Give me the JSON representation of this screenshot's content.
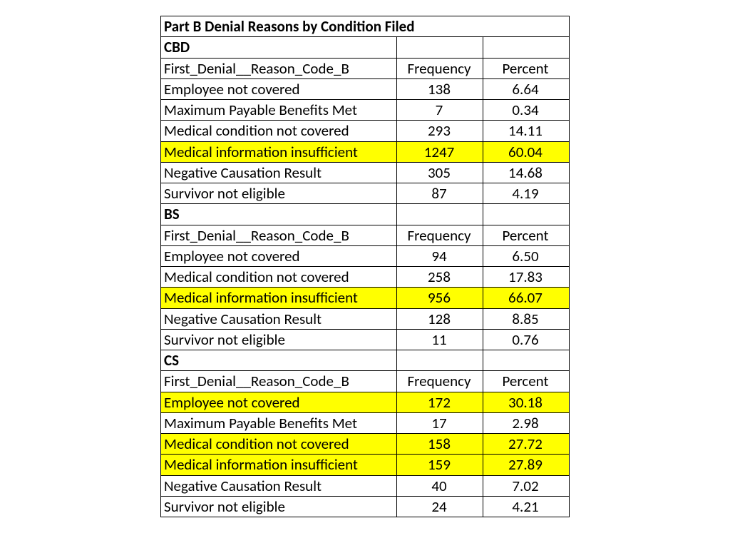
{
  "title": "Part B Denial Reasons by Condition Filed",
  "columns": {
    "reason": "First_Denial__Reason_Code_B",
    "freq": "Frequency",
    "pct": "Percent"
  },
  "highlight_color": "#ffff00",
  "border_color": "#000000",
  "background_color": "#ffffff",
  "font_size_pt": 16,
  "sections": [
    {
      "name": "CBD",
      "rows": [
        {
          "reason": "Employee not covered",
          "freq": "138",
          "pct": "6.64",
          "hl": false
        },
        {
          "reason": "Maximum Payable Benefits Met",
          "freq": "7",
          "pct": "0.34",
          "hl": false
        },
        {
          "reason": "Medical condition not covered",
          "freq": "293",
          "pct": "14.11",
          "hl": false
        },
        {
          "reason": "Medical information insufficient",
          "freq": "1247",
          "pct": "60.04",
          "hl": true
        },
        {
          "reason": "Negative Causation Result",
          "freq": "305",
          "pct": "14.68",
          "hl": false
        },
        {
          "reason": "Survivor not eligible",
          "freq": "87",
          "pct": "4.19",
          "hl": false
        }
      ]
    },
    {
      "name": "BS",
      "rows": [
        {
          "reason": "Employee not covered",
          "freq": "94",
          "pct": "6.50",
          "hl": false
        },
        {
          "reason": "Medical condition not covered",
          "freq": "258",
          "pct": "17.83",
          "hl": false
        },
        {
          "reason": "Medical information insufficient",
          "freq": "956",
          "pct": "66.07",
          "hl": true
        },
        {
          "reason": "Negative Causation Result",
          "freq": "128",
          "pct": "8.85",
          "hl": false
        },
        {
          "reason": "Survivor not eligible",
          "freq": "11",
          "pct": "0.76",
          "hl": false
        }
      ]
    },
    {
      "name": "CS",
      "rows": [
        {
          "reason": "Employee not covered",
          "freq": "172",
          "pct": "30.18",
          "hl": true
        },
        {
          "reason": "Maximum Payable Benefits Met",
          "freq": "17",
          "pct": "2.98",
          "hl": false
        },
        {
          "reason": "Medical condition not covered",
          "freq": "158",
          "pct": "27.72",
          "hl": true
        },
        {
          "reason": "Medical information insufficient",
          "freq": "159",
          "pct": "27.89",
          "hl": true
        },
        {
          "reason": "Negative Causation Result",
          "freq": "40",
          "pct": "7.02",
          "hl": false
        },
        {
          "reason": "Survivor not eligible",
          "freq": "24",
          "pct": "4.21",
          "hl": false
        }
      ]
    }
  ]
}
